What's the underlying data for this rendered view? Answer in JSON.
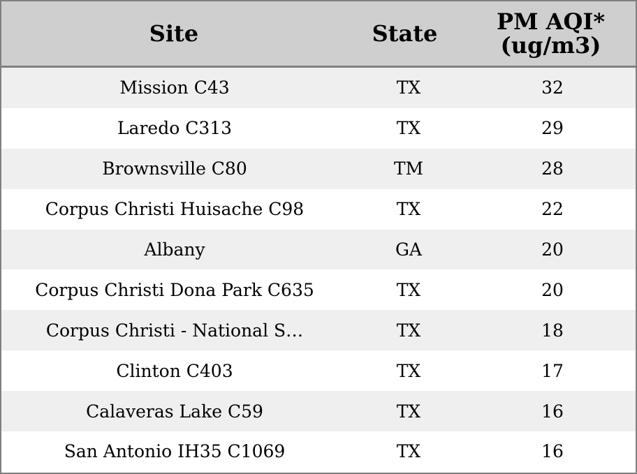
{
  "chart_data": {
    "type": "table",
    "columns": [
      "Site",
      "State",
      "PM AQI*\n(ug/m3)"
    ],
    "rows": [
      [
        "Mission C43",
        "TX",
        "32"
      ],
      [
        "Laredo C313",
        "TX",
        "29"
      ],
      [
        "Brownsville C80",
        "TM",
        "28"
      ],
      [
        "Corpus Christi Huisache C98",
        "TX",
        "22"
      ],
      [
        "Albany",
        "GA",
        "20"
      ],
      [
        "Corpus Christi Dona Park C635",
        "TX",
        "20"
      ],
      [
        "Corpus Christi - National S…",
        "TX",
        "18"
      ],
      [
        "Clinton C403",
        "TX",
        "17"
      ],
      [
        "Calaveras Lake C59",
        "TX",
        "16"
      ],
      [
        "San Antonio IH35 C1069",
        "TX",
        "16"
      ]
    ]
  },
  "colors": {
    "header_bg": "#cfcfcf",
    "row_shaded": "#efefef",
    "row_plain": "#ffffff",
    "border": "#808080"
  }
}
